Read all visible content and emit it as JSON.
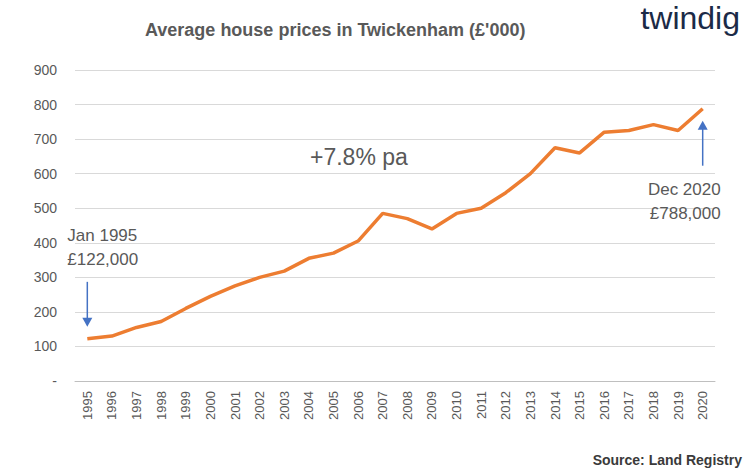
{
  "chart_data": {
    "type": "line",
    "title": "Average house prices in Twickenham (£'000)",
    "categories": [
      "1995",
      "1996",
      "1997",
      "1998",
      "1999",
      "2000",
      "2001",
      "2002",
      "2003",
      "2004",
      "2005",
      "2006",
      "2007",
      "2008",
      "2009",
      "2010",
      "2011",
      "2012",
      "2013",
      "2014",
      "2015",
      "2016",
      "2017",
      "2018",
      "2019",
      "2020"
    ],
    "values": [
      122,
      130,
      155,
      172,
      210,
      245,
      275,
      300,
      318,
      355,
      370,
      405,
      485,
      470,
      440,
      485,
      500,
      545,
      600,
      675,
      660,
      720,
      725,
      742,
      725,
      788
    ],
    "color": "#ed7d31",
    "ylim": [
      0,
      900
    ],
    "yticks": [
      {
        "value": 0,
        "label": "-"
      },
      100,
      200,
      300,
      400,
      500,
      600,
      700,
      800,
      900
    ],
    "grid": true,
    "annotations": [
      {
        "text": "+7.8% pa"
      },
      {
        "text": "Jan 1995\n£122,000",
        "category": "1995"
      },
      {
        "text": "Dec 2020\n£788,000",
        "category": "2020"
      }
    ],
    "logo": "twindig",
    "source": "Source: Land Registry"
  }
}
